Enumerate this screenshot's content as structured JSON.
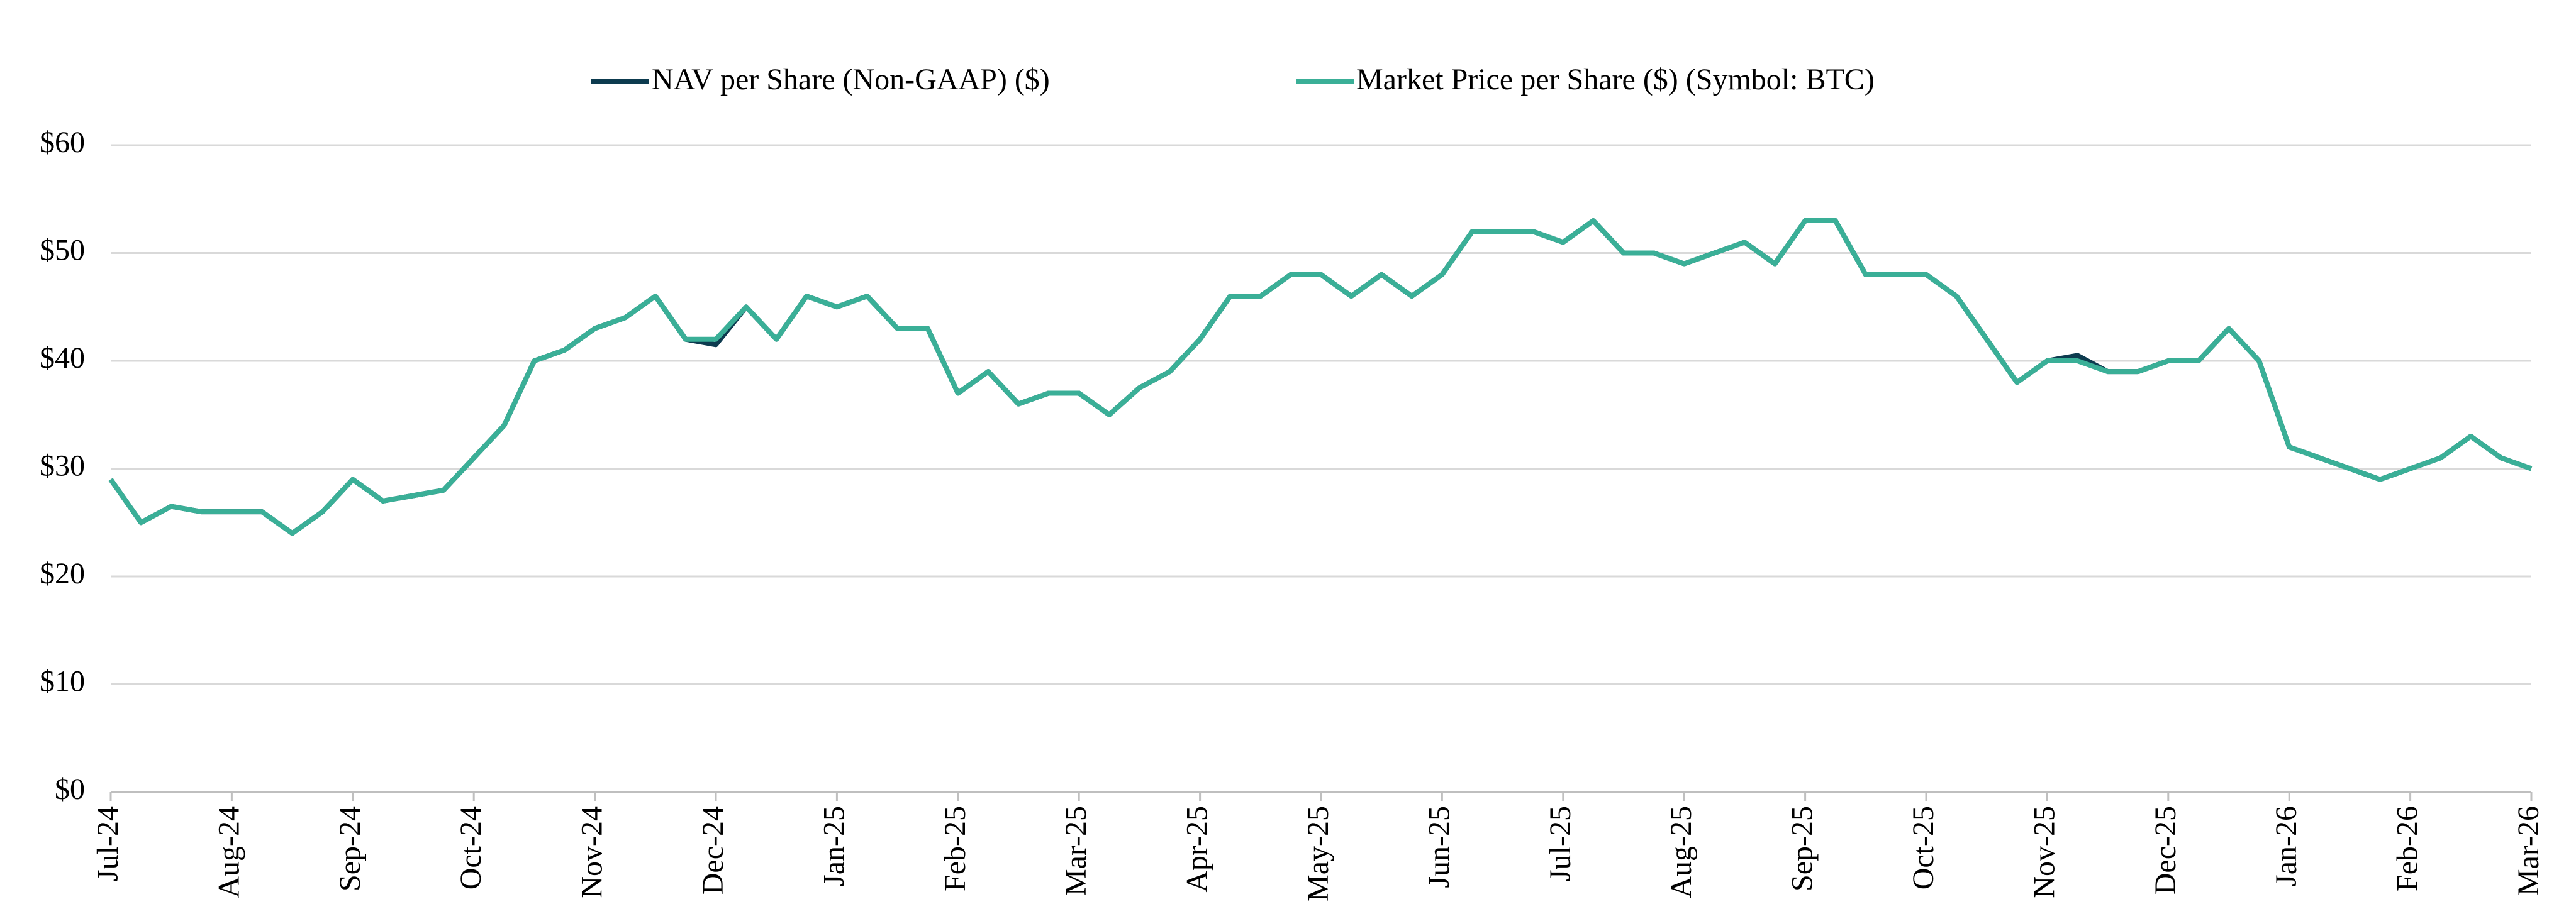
{
  "chart_data": {
    "type": "line",
    "categories": [
      "Jul-24",
      null,
      null,
      null,
      "Aug-24",
      null,
      null,
      null,
      "Sep-24",
      null,
      null,
      null,
      "Oct-24",
      null,
      null,
      null,
      "Nov-24",
      null,
      null,
      null,
      "Dec-24",
      null,
      null,
      null,
      "Jan-25",
      null,
      null,
      null,
      "Feb-25",
      null,
      null,
      null,
      "Mar-25",
      null,
      null,
      null,
      "Apr-25",
      null,
      null,
      null,
      "May-25",
      null,
      null,
      null,
      "Jun-25",
      null,
      null,
      null,
      "Jul-25",
      null,
      null,
      null,
      "Aug-25",
      null,
      null,
      null,
      "Sep-25",
      null,
      null,
      null,
      "Oct-25",
      null,
      null,
      null,
      "Nov-25",
      null,
      null,
      null,
      "Dec-25",
      null,
      null,
      null,
      "Jan-26",
      null,
      null,
      null,
      "Feb-26",
      null,
      null,
      null,
      "Mar-26"
    ],
    "series": [
      {
        "name": "NAV per Share (Non-GAAP) ($)",
        "color": "#0d3b4f",
        "values": [
          29,
          25,
          26.5,
          26,
          26,
          26,
          24,
          26,
          29,
          27,
          27.5,
          28,
          31,
          34,
          40,
          41,
          43,
          44,
          46,
          42,
          41.5,
          45,
          42,
          46,
          45,
          46,
          43,
          43,
          37,
          39,
          36,
          37,
          37,
          35,
          37.5,
          39,
          42,
          46,
          46,
          48,
          48,
          46,
          48,
          46,
          48,
          52,
          52,
          52,
          51,
          53,
          50,
          50,
          49,
          50,
          51,
          49,
          53,
          53,
          48,
          48,
          48,
          46,
          42,
          38,
          40,
          40.5,
          39,
          39,
          40,
          40,
          43,
          40,
          32,
          31,
          30,
          29,
          30,
          31,
          33,
          31,
          30
        ]
      },
      {
        "name": "Market Price per Share ($) (Symbol: BTC)",
        "color": "#3aaf97",
        "values": [
          29,
          25,
          26.5,
          26,
          26,
          26,
          24,
          26,
          29,
          27,
          27.5,
          28,
          31,
          34,
          40,
          41,
          43,
          44,
          46,
          42,
          42,
          45,
          42,
          46,
          45,
          46,
          43,
          43,
          37,
          39,
          36,
          37,
          37,
          35,
          37.5,
          39,
          42,
          46,
          46,
          48,
          48,
          46,
          48,
          46,
          48,
          52,
          52,
          52,
          51,
          53,
          50,
          50,
          49,
          50,
          51,
          49,
          53,
          53,
          48,
          48,
          48,
          46,
          42,
          38,
          40,
          40,
          39,
          39,
          40,
          40,
          43,
          40,
          32,
          31,
          30,
          29,
          30,
          31,
          33,
          31,
          30
        ]
      }
    ],
    "ylim": [
      0,
      60
    ],
    "yticks": [
      {
        "value": 0,
        "label": "$0"
      },
      {
        "value": 10,
        "label": "$10"
      },
      {
        "value": 20,
        "label": "$20"
      },
      {
        "value": 30,
        "label": "$30"
      },
      {
        "value": 40,
        "label": "$40"
      },
      {
        "value": 50,
        "label": "$50"
      },
      {
        "value": 60,
        "label": "$60"
      }
    ],
    "grid": true
  }
}
